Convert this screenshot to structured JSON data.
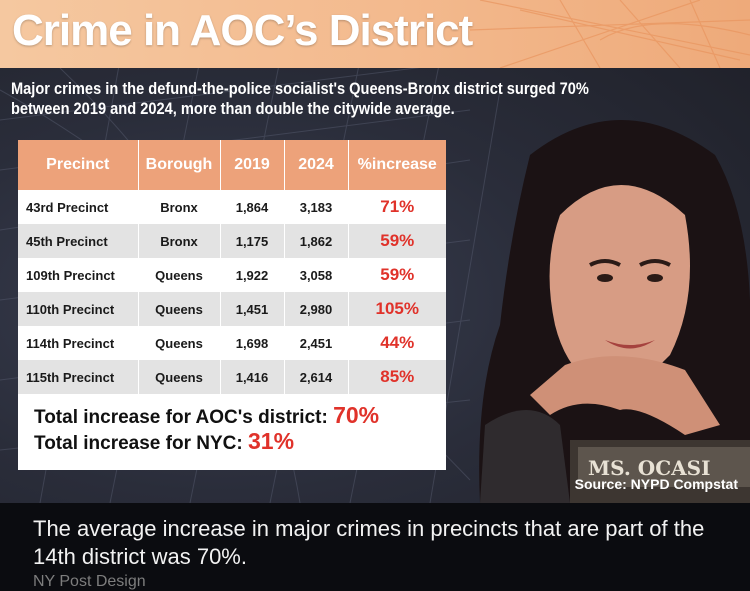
{
  "title": "Crime in AOC’s District",
  "subtitle": "Major crimes in the defund-the-police socialist's Queens-Bronx district surged 70% between 2019 and 2024, more than double the citywide average.",
  "table": {
    "headers": [
      "Precinct",
      "Borough",
      "2019",
      "2024",
      "%increase"
    ],
    "rows": [
      {
        "precinct": "43rd Precinct",
        "borough": "Bronx",
        "y2019": "1,864",
        "y2024": "3,183",
        "pct": "71%"
      },
      {
        "precinct": "45th Precinct",
        "borough": "Bronx",
        "y2019": "1,175",
        "y2024": "1,862",
        "pct": "59%"
      },
      {
        "precinct": "109th Precinct",
        "borough": "Queens",
        "y2019": "1,922",
        "y2024": "3,058",
        "pct": "59%"
      },
      {
        "precinct": "110th Precinct",
        "borough": "Queens",
        "y2019": "1,451",
        "y2024": "2,980",
        "pct": "105%"
      },
      {
        "precinct": "114th Precinct",
        "borough": "Queens",
        "y2019": "1,698",
        "y2024": "2,451",
        "pct": "44%"
      },
      {
        "precinct": "115th Precinct",
        "borough": "Queens",
        "y2019": "1,416",
        "y2024": "2,614",
        "pct": "85%"
      }
    ]
  },
  "totals": {
    "district_label": "Total increase for AOC's district:",
    "district_value": "70%",
    "nyc_label": "Total increase for NYC:",
    "nyc_value": "31%"
  },
  "nameplate": "MS. OCASI",
  "source": "Source: NYPD Compstat",
  "caption": "The average increase in major crimes in precincts that are part of the 14th district was 70%.",
  "credit": "NY Post Design",
  "colors": {
    "header_orange": "#eda27a",
    "banner_peach": "#f3b98d",
    "accent_red": "#e0322a",
    "background_dark": "#0b0c10"
  }
}
